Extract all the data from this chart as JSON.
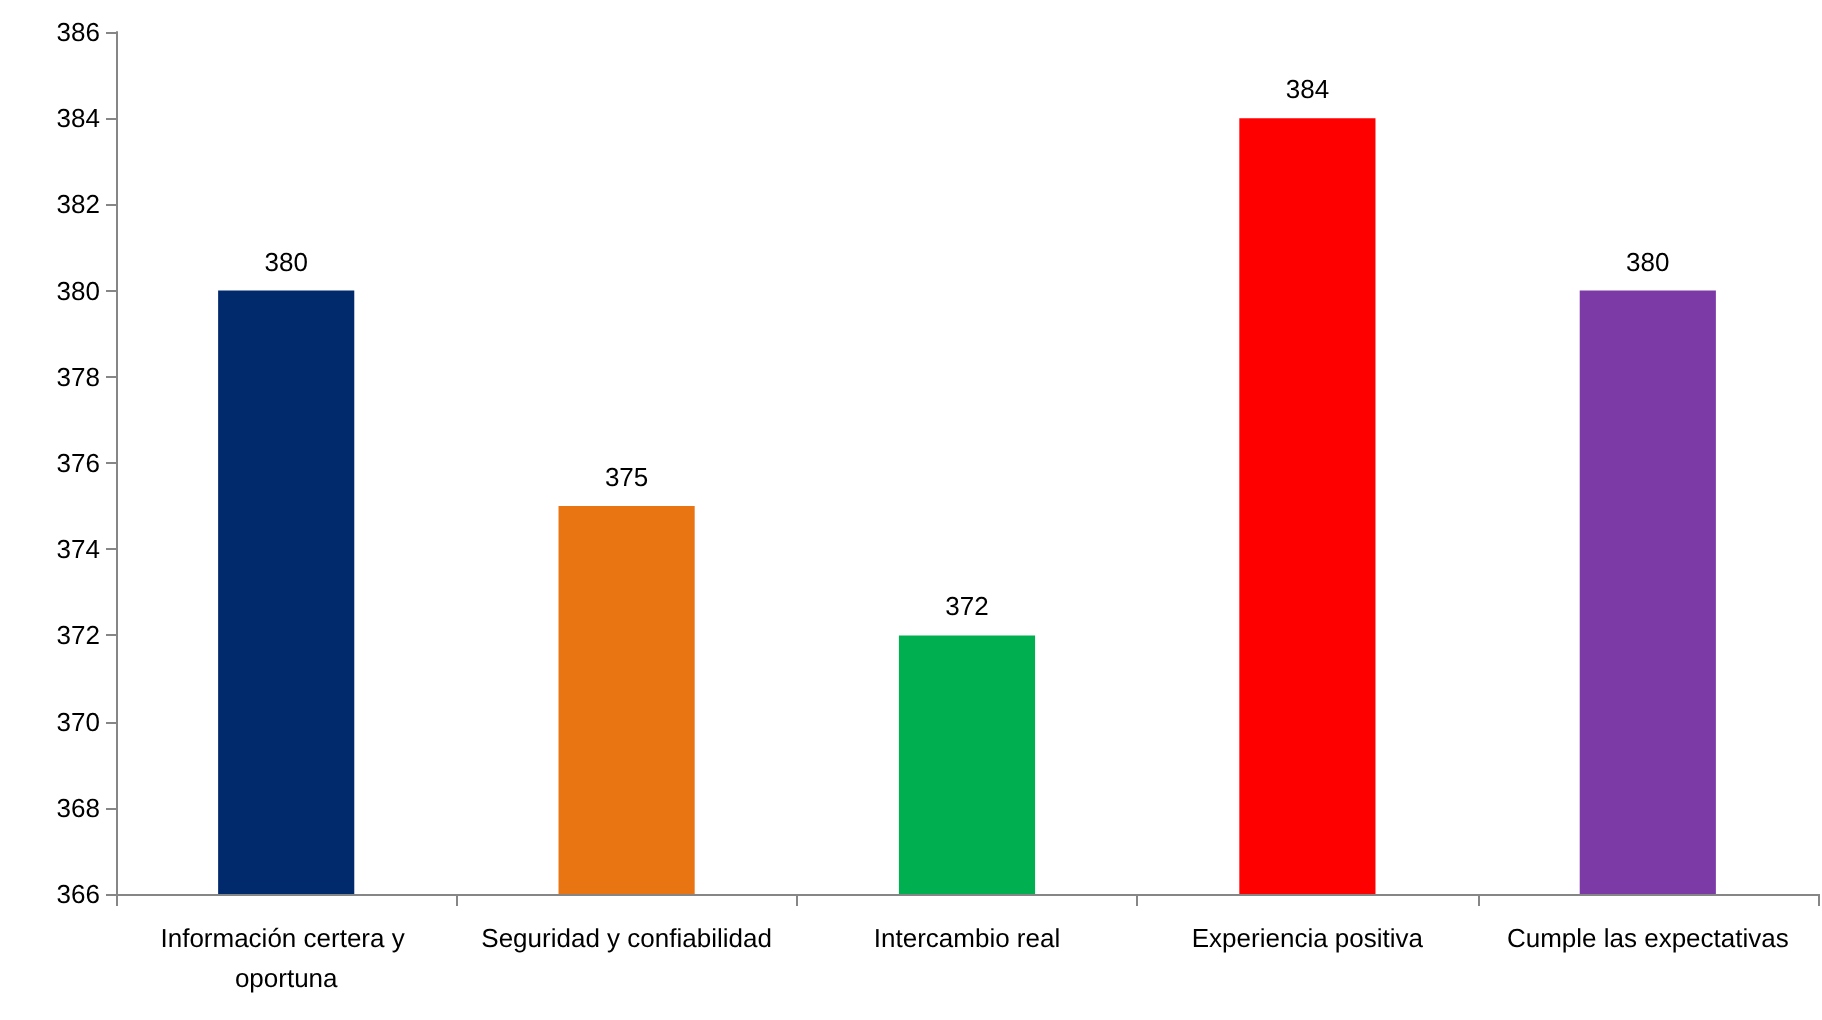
{
  "chart_data": {
    "type": "bar",
    "categories": [
      "Información certera y oportuna",
      "Seguridad y confiabilidad",
      "Intercambio real",
      "Experiencia positiva",
      "Cumple las expectativas"
    ],
    "values": [
      380,
      375,
      372,
      384,
      380
    ],
    "colors": [
      "#002a6c",
      "#e87511",
      "#00b050",
      "#ff0000",
      "#7b3aa6"
    ],
    "ylim": [
      366,
      386
    ],
    "yticks": [
      366,
      368,
      370,
      372,
      374,
      376,
      378,
      380,
      382,
      384,
      386
    ],
    "data_labels": true
  }
}
